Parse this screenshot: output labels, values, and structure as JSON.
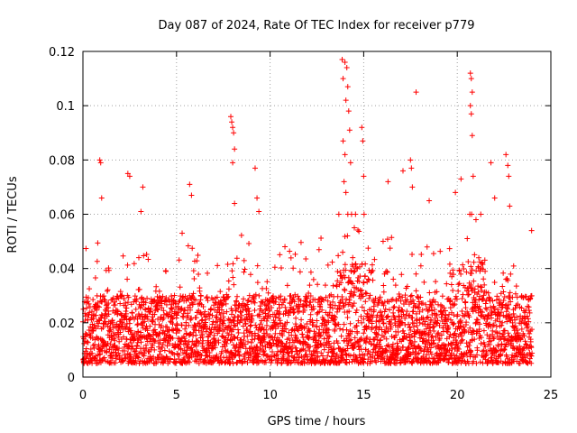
{
  "chart_data": {
    "type": "scatter",
    "title": "Day 087 of 2024, Rate Of TEC Index for receiver p779",
    "xlabel": "GPS time / hours",
    "ylabel": "ROTI / TECUs",
    "xlim": [
      0,
      25
    ],
    "ylim": [
      0,
      0.12
    ],
    "xticks": [
      0,
      5,
      10,
      15,
      20,
      25
    ],
    "xtick_labels": [
      "0",
      "5",
      "10",
      "15",
      "20",
      "25"
    ],
    "yticks": [
      0,
      0.02,
      0.04,
      0.06,
      0.08,
      0.1,
      0.12
    ],
    "ytick_labels": [
      "0",
      "0.02",
      "0.04",
      "0.06",
      "0.08",
      "0.1",
      "0.12"
    ],
    "grid": true,
    "marker": "+",
    "color": "#ff0000",
    "data_extent_hours": [
      0,
      24
    ],
    "baseline_range": [
      0.005,
      0.03
    ],
    "series": [
      {
        "name": "ROTI",
        "points": [
          [
            0.9,
            0.08
          ],
          [
            0.95,
            0.079
          ],
          [
            1.0,
            0.066
          ],
          [
            2.4,
            0.075
          ],
          [
            2.5,
            0.074
          ],
          [
            3.1,
            0.061
          ],
          [
            3.2,
            0.07
          ],
          [
            5.3,
            0.053
          ],
          [
            5.7,
            0.071
          ],
          [
            5.8,
            0.067
          ],
          [
            7.9,
            0.096
          ],
          [
            7.95,
            0.094
          ],
          [
            8.0,
            0.092
          ],
          [
            8.05,
            0.09
          ],
          [
            8.1,
            0.084
          ],
          [
            8.0,
            0.079
          ],
          [
            8.1,
            0.064
          ],
          [
            9.2,
            0.077
          ],
          [
            9.3,
            0.066
          ],
          [
            9.4,
            0.061
          ],
          [
            13.85,
            0.117
          ],
          [
            13.9,
            0.11
          ],
          [
            14.0,
            0.116
          ],
          [
            14.05,
            0.102
          ],
          [
            14.1,
            0.114
          ],
          [
            14.15,
            0.107
          ],
          [
            14.2,
            0.098
          ],
          [
            14.25,
            0.091
          ],
          [
            13.9,
            0.087
          ],
          [
            14.0,
            0.082
          ],
          [
            13.95,
            0.072
          ],
          [
            14.05,
            0.068
          ],
          [
            14.3,
            0.079
          ],
          [
            14.5,
            0.055
          ],
          [
            14.9,
            0.092
          ],
          [
            14.95,
            0.087
          ],
          [
            15.0,
            0.074
          ],
          [
            16.3,
            0.072
          ],
          [
            17.1,
            0.076
          ],
          [
            17.5,
            0.08
          ],
          [
            17.55,
            0.077
          ],
          [
            17.6,
            0.07
          ],
          [
            17.8,
            0.105
          ],
          [
            18.5,
            0.065
          ],
          [
            19.9,
            0.068
          ],
          [
            20.2,
            0.073
          ],
          [
            20.7,
            0.112
          ],
          [
            20.75,
            0.11
          ],
          [
            20.8,
            0.105
          ],
          [
            20.7,
            0.1
          ],
          [
            20.75,
            0.097
          ],
          [
            20.8,
            0.089
          ],
          [
            20.85,
            0.074
          ],
          [
            21.0,
            0.058
          ],
          [
            21.8,
            0.079
          ],
          [
            22.0,
            0.066
          ],
          [
            22.6,
            0.082
          ],
          [
            22.7,
            0.078
          ],
          [
            22.75,
            0.074
          ],
          [
            22.8,
            0.063
          ]
        ]
      }
    ]
  }
}
